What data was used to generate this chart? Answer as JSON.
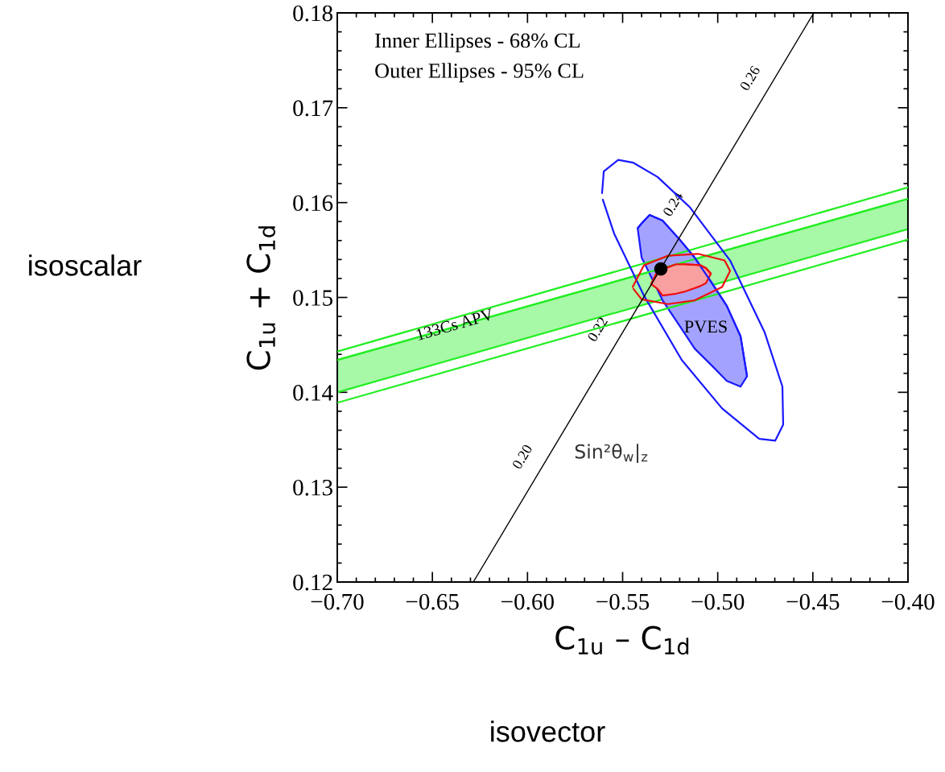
{
  "chart_data": {
    "type": "line",
    "xlabel": "C$_{1u}$ – C$_{1d}$",
    "ylabel": "C$_{1u}$ + C$_{1d}$",
    "xlim": [
      -0.7,
      -0.4
    ],
    "xticks": [
      {
        "value": -0.7,
        "label": "−0.70"
      },
      {
        "value": -0.65,
        "label": "−0.65"
      },
      {
        "value": -0.6,
        "label": "−0.60"
      },
      {
        "value": -0.55,
        "label": "−0.55"
      },
      {
        "value": -0.5,
        "label": "−0.50"
      },
      {
        "value": -0.45,
        "label": "−0.45"
      },
      {
        "value": -0.4,
        "label": "−0.40"
      }
    ],
    "ylim": [
      0.12,
      0.18
    ],
    "yticks": [
      {
        "value": 0.12,
        "label": "0.12"
      },
      {
        "value": 0.13,
        "label": "0.13"
      },
      {
        "value": 0.14,
        "label": "0.14"
      },
      {
        "value": 0.15,
        "label": "0.15"
      },
      {
        "value": 0.16,
        "label": "0.16"
      },
      {
        "value": 0.17,
        "label": "0.17"
      },
      {
        "value": 0.18,
        "label": "0.18"
      }
    ],
    "grid": false,
    "legend": false,
    "series": [
      {
        "color": "#22ee22",
        "x": [
          -0.7,
          -0.4
        ],
        "values": [
          0.1434,
          0.1604
        ],
        "lower": [
          0.14,
          0.1572
        ],
        "upper": [
          0.1434,
          0.1604
        ]
      },
      {
        "color": "#22ee22",
        "x": [
          -0.7,
          -0.4
        ],
        "values": [
          0.1443,
          0.1616
        ]
      },
      {
        "color": "#22ee22",
        "x": [
          -0.7,
          -0.4
        ],
        "values": [
          0.1389,
          0.1561
        ]
      },
      {
        "color": "#1a1aff",
        "x": [
          -0.5608,
          -0.5599,
          -0.5523,
          -0.5443,
          -0.5316,
          -0.5146,
          -0.4935,
          -0.4753,
          -0.466,
          -0.4656,
          -0.4698,
          -0.4782,
          -0.4977,
          -0.5189,
          -0.5388,
          -0.5544,
          -0.5604
        ],
        "values": [
          0.161,
          0.1633,
          0.1645,
          0.1642,
          0.1627,
          0.1595,
          0.1539,
          0.1463,
          0.1406,
          0.1366,
          0.1349,
          0.1351,
          0.1383,
          0.1434,
          0.1502,
          0.1567,
          0.1603
        ]
      },
      {
        "color": "#1a1aff",
        "x": [
          -0.5421,
          -0.54,
          -0.5358,
          -0.529,
          -0.52,
          -0.5121,
          -0.503,
          -0.4952,
          -0.488,
          -0.4846
        ],
        "values": [
          0.1573,
          0.1578,
          0.1587,
          0.1581,
          0.1561,
          0.1542,
          0.1515,
          0.1491,
          0.1459,
          0.1417
        ],
        "lower": [
          0.1573,
          0.1542,
          0.1525,
          0.1497,
          0.147,
          0.1446,
          0.1428,
          0.1412,
          0.1406,
          0.1417
        ],
        "upper": [
          0.1573,
          0.1578,
          0.1587,
          0.1581,
          0.1561,
          0.1542,
          0.1515,
          0.1491,
          0.1459,
          0.1417
        ]
      },
      {
        "color": "#ee1111",
        "x": [
          -0.5447,
          -0.5388,
          -0.5261,
          -0.5104,
          -0.4964,
          -0.4935,
          -0.4977,
          -0.5121,
          -0.5261,
          -0.54,
          -0.5443
        ],
        "values": [
          0.1511,
          0.1534,
          0.1544,
          0.1546,
          0.1539,
          0.1528,
          0.1511,
          0.1497,
          0.1493,
          0.1498,
          0.1509
        ]
      },
      {
        "color": "#ee1111",
        "x": [
          -0.535,
          -0.5316,
          -0.529,
          -0.5218,
          -0.5176,
          -0.5091,
          -0.5062,
          -0.5036
        ],
        "values": [
          0.1514,
          0.1528,
          0.153,
          0.1535,
          0.1535,
          0.1534,
          0.1531,
          0.1525
        ],
        "lower": [
          0.1514,
          0.1509,
          0.1502,
          0.1504,
          0.1506,
          0.1512,
          0.1515,
          0.1525
        ],
        "upper": [
          0.1514,
          0.1528,
          0.153,
          0.1535,
          0.1535,
          0.1534,
          0.1531,
          0.1525
        ]
      },
      {
        "color": "#000000",
        "x": [
          -0.6285,
          -0.4495
        ],
        "values": [
          0.12,
          0.18
        ]
      },
      {
        "type": "scatter",
        "color": "#000000",
        "marker": "circle",
        "x": [
          -0.5299
        ],
        "values": [
          0.153
        ]
      }
    ],
    "annotations": [
      "Inner Ellipses - 68% CL",
      "Outer Ellipses - 95% CL",
      "isoscalar",
      "isovector",
      {
        "text": "133Cs APV",
        "x": -0.6382,
        "y": 0.147
      },
      "PVES",
      "Sin²θ$_{w}$|$_{z}$",
      "0.20",
      "0.22",
      "0.24",
      "0.26"
    ]
  }
}
